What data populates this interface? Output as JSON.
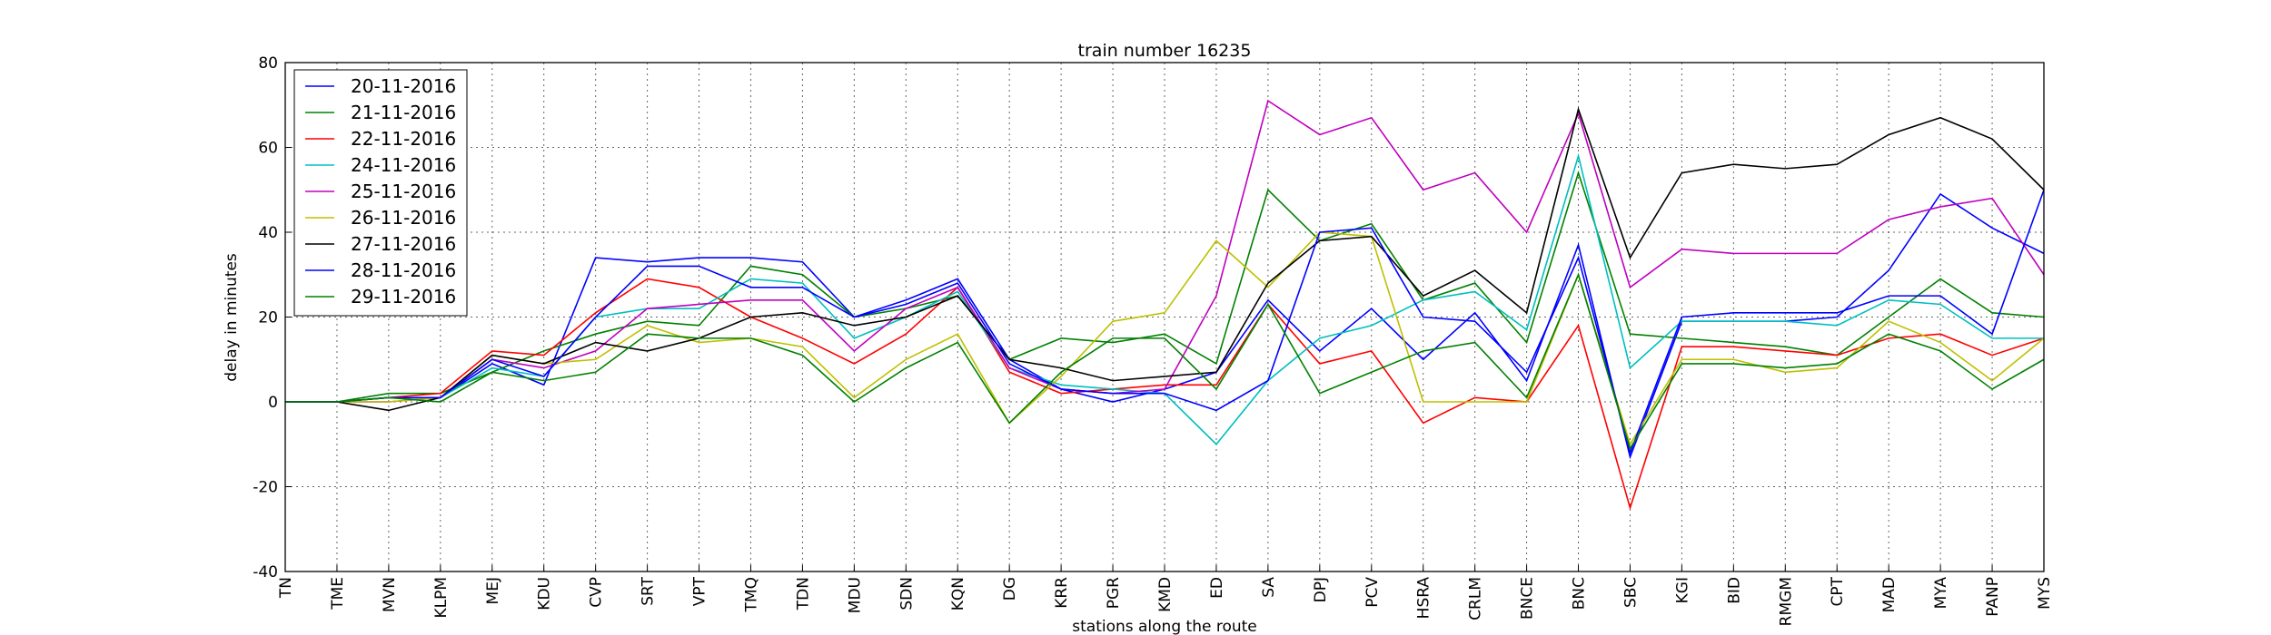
{
  "chart_data": {
    "type": "line",
    "title": "train number 16235",
    "xlabel": "stations along the route",
    "ylabel": "delay in minutes",
    "categories": [
      "TN",
      "TME",
      "MVN",
      "KLPM",
      "MEJ",
      "KDU",
      "CVP",
      "SRT",
      "VPT",
      "TMQ",
      "TDN",
      "MDU",
      "SDN",
      "KQN",
      "DG",
      "KRR",
      "PGR",
      "KMD",
      "ED",
      "SA",
      "DPJ",
      "PCV",
      "HSRA",
      "CRLM",
      "BNCE",
      "BNC",
      "SBC",
      "KGI",
      "BID",
      "RMGM",
      "CPT",
      "MAD",
      "MYA",
      "PANP",
      "MYS"
    ],
    "ylim": [
      -40,
      80
    ],
    "yticks": [
      -40,
      -20,
      0,
      20,
      40,
      60,
      80
    ],
    "grid": true,
    "legend": "upper left",
    "series": [
      {
        "name": "20-11-2016",
        "color": "#0000ff",
        "values": [
          0,
          0,
          1,
          1,
          9,
          4,
          34,
          33,
          34,
          34,
          33,
          20,
          24,
          29,
          10,
          3,
          0,
          3,
          7,
          24,
          12,
          22,
          10,
          21,
          5,
          37,
          -13,
          19,
          19,
          19,
          20,
          31,
          49,
          41,
          35
        ]
      },
      {
        "name": "21-11-2016",
        "color": "#008000",
        "values": [
          0,
          0,
          2,
          2,
          7,
          12,
          16,
          19,
          18,
          32,
          30,
          20,
          22,
          25,
          10,
          15,
          14,
          16,
          9,
          50,
          38,
          42,
          24,
          28,
          14,
          54,
          16,
          15,
          14,
          13,
          11,
          20,
          29,
          21,
          20
        ]
      },
      {
        "name": "22-11-2016",
        "color": "#ff0000",
        "values": [
          0,
          0,
          1,
          2,
          12,
          11,
          21,
          29,
          27,
          20,
          15,
          9,
          16,
          27,
          7,
          2,
          3,
          4,
          4,
          23,
          9,
          12,
          -5,
          1,
          0,
          18,
          -25,
          13,
          13,
          12,
          11,
          15,
          16,
          11,
          15
        ]
      },
      {
        "name": "24-11-2016",
        "color": "#00bfbf",
        "values": [
          0,
          0,
          1,
          1,
          8,
          6,
          20,
          22,
          22,
          29,
          28,
          15,
          20,
          26,
          8,
          4,
          3,
          2,
          -10,
          5,
          15,
          18,
          24,
          26,
          17,
          58,
          8,
          19,
          19,
          19,
          18,
          24,
          23,
          15,
          15
        ]
      },
      {
        "name": "25-11-2016",
        "color": "#bf00bf",
        "values": [
          0,
          0,
          0,
          1,
          10,
          8,
          12,
          22,
          23,
          24,
          24,
          12,
          22,
          27,
          8,
          3,
          2,
          3,
          25,
          71,
          63,
          67,
          50,
          54,
          40,
          68,
          27,
          36,
          35,
          35,
          35,
          43,
          46,
          48,
          30
        ]
      },
      {
        "name": "26-11-2016",
        "color": "#bfbf00",
        "values": [
          0,
          0,
          0,
          1,
          11,
          9,
          10,
          18,
          14,
          15,
          13,
          1,
          10,
          16,
          -5,
          6,
          19,
          21,
          38,
          27,
          40,
          39,
          0,
          0,
          0,
          30,
          -10,
          10,
          10,
          7,
          8,
          19,
          14,
          5,
          15
        ]
      },
      {
        "name": "27-11-2016",
        "color": "#000000",
        "values": [
          0,
          0,
          -2,
          1,
          11,
          9,
          14,
          12,
          15,
          20,
          21,
          18,
          20,
          25,
          10,
          8,
          5,
          6,
          7,
          28,
          38,
          39,
          25,
          31,
          21,
          69,
          34,
          54,
          56,
          55,
          56,
          63,
          67,
          62,
          50
        ]
      },
      {
        "name": "28-11-2016",
        "color": "#0000ff",
        "values": [
          0,
          0,
          1,
          1,
          10,
          6,
          20,
          32,
          32,
          27,
          27,
          20,
          23,
          28,
          9,
          3,
          2,
          2,
          -2,
          5,
          40,
          41,
          20,
          19,
          7,
          34,
          -12,
          20,
          21,
          21,
          21,
          25,
          25,
          16,
          50
        ]
      },
      {
        "name": "29-11-2016",
        "color": "#008000",
        "values": [
          0,
          0,
          1,
          0,
          7,
          5,
          7,
          16,
          15,
          15,
          11,
          0,
          8,
          14,
          -5,
          7,
          15,
          15,
          3,
          23,
          2,
          7,
          12,
          14,
          1,
          30,
          -11,
          9,
          9,
          8,
          9,
          16,
          12,
          3,
          10
        ]
      }
    ]
  }
}
